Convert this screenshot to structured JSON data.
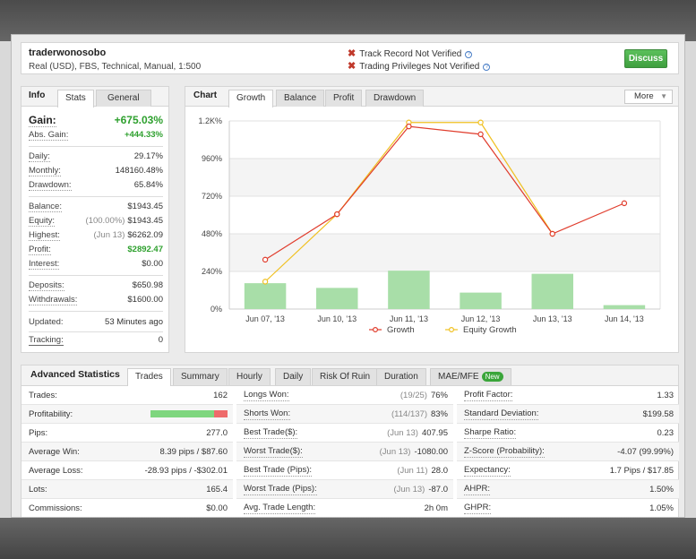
{
  "header": {
    "username": "traderwonosobo",
    "account_info": "Real (USD), FBS, Technical, Manual, 1:500",
    "flag_track_record": "Track Record Not Verified",
    "flag_trading_privileges": "Trading Privileges Not Verified",
    "discuss_label": "Discuss"
  },
  "info_panel": {
    "title": "Info",
    "tabs": [
      "Stats",
      "General"
    ],
    "gain_label": "Gain:",
    "gain_value": "+675.03%",
    "abs_gain_label": "Abs. Gain:",
    "abs_gain_value": "+444.33%",
    "daily_label": "Daily:",
    "daily_value": "29.17%",
    "monthly_label": "Monthly:",
    "monthly_value": "148160.48%",
    "drawdown_label": "Drawdown:",
    "drawdown_value": "65.84%",
    "balance_label": "Balance:",
    "balance_value": "$1943.45",
    "equity_label": "Equity:",
    "equity_pre": "(100.00%)",
    "equity_value": "$1943.45",
    "highest_label": "Highest:",
    "highest_pre": "(Jun 13)",
    "highest_value": "$6262.09",
    "profit_label": "Profit:",
    "profit_value": "$2892.47",
    "interest_label": "Interest:",
    "interest_value": "$0.00",
    "deposits_label": "Deposits:",
    "deposits_value": "$650.98",
    "withdrawals_label": "Withdrawals:",
    "withdrawals_value": "$1600.00",
    "updated_label": "Updated:",
    "updated_value": "53 Minutes ago",
    "tracking_label": "Tracking:",
    "tracking_value": "0"
  },
  "chart_panel": {
    "title": "Chart",
    "tabs": [
      "Growth",
      "Balance",
      "Profit",
      "Drawdown"
    ],
    "more_label": "More"
  },
  "chart_data": {
    "type": "line",
    "categories": [
      "Jun 07, '13",
      "Jun 10, '13",
      "Jun 11, '13",
      "Jun 12, '13",
      "Jun 13, '13",
      "Jun 14, '13"
    ],
    "y_ticks": [
      "0%",
      "240%",
      "480%",
      "720%",
      "960%",
      "1.2K%"
    ],
    "ylim": [
      0,
      1200
    ],
    "series": [
      {
        "name": "Growth",
        "color": "#e03c2c",
        "values": [
          315,
          605,
          1165,
          1115,
          480,
          675
        ]
      },
      {
        "name": "Equity Growth",
        "color": "#f0c020",
        "values": [
          175,
          605,
          1190,
          1190,
          480,
          null
        ]
      }
    ],
    "bars": {
      "color": "#a8dea8",
      "values": [
        165,
        135,
        245,
        105,
        225,
        25
      ]
    },
    "legend": "bottom-center",
    "grid": true
  },
  "advanced": {
    "title": "Advanced Statistics",
    "tabs": [
      "Trades",
      "Summary",
      "Hourly",
      "Daily",
      "Risk Of Ruin",
      "Duration",
      "MAE/MFE"
    ],
    "new_badge": "New",
    "profitability_fraction": 0.83,
    "col1": [
      {
        "label": "Trades:",
        "value": "162"
      },
      {
        "label": "Profitability:",
        "value": ""
      },
      {
        "label": "Pips:",
        "value": "277.0"
      },
      {
        "label": "Average Win:",
        "value": "8.39 pips / $87.60"
      },
      {
        "label": "Average Loss:",
        "value": "-28.93 pips / -$302.01"
      },
      {
        "label": "Lots:",
        "value": "165.4"
      },
      {
        "label": "Commissions:",
        "value": "$0.00"
      }
    ],
    "col2": [
      {
        "label": "Longs Won:",
        "pre": "(19/25)",
        "value": "76%"
      },
      {
        "label": "Shorts Won:",
        "pre": "(114/137)",
        "value": "83%"
      },
      {
        "label": "Best Trade($):",
        "pre": "(Jun 13)",
        "value": "407.95"
      },
      {
        "label": "Worst Trade($):",
        "pre": "(Jun 13)",
        "value": "-1080.00"
      },
      {
        "label": "Best Trade (Pips):",
        "pre": "(Jun 11)",
        "value": "28.0"
      },
      {
        "label": "Worst Trade (Pips):",
        "pre": "(Jun 13)",
        "value": "-87.0"
      },
      {
        "label": "Avg. Trade Length:",
        "pre": "",
        "value": "2h 0m"
      }
    ],
    "col3": [
      {
        "label": "Profit Factor:",
        "value": "1.33"
      },
      {
        "label": "Standard Deviation:",
        "value": "$199.58"
      },
      {
        "label": "Sharpe Ratio:",
        "value": "0.23"
      },
      {
        "label": "Z-Score (Probability):",
        "value": "-4.07 (99.99%)"
      },
      {
        "label": "Expectancy:",
        "value": "1.7 Pips / $17.85"
      },
      {
        "label": "AHPR:",
        "value": "1.50%"
      },
      {
        "label": "GHPR:",
        "value": "1.05%"
      }
    ]
  }
}
